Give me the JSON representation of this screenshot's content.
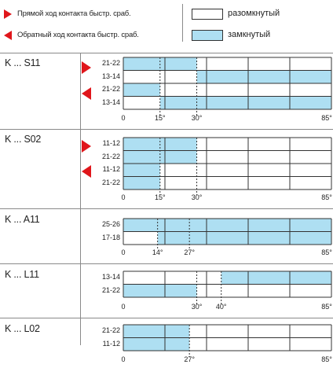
{
  "legend": {
    "direct_stroke": "Прямой ход контакта быстр. сраб.",
    "reverse_stroke": "Обратный ход контакта быстр. сраб.",
    "open": "разомкнутый",
    "closed": "замкнутый"
  },
  "colors": {
    "closed_fill": "#aedff2",
    "open_fill": "#ffffff",
    "arrow": "#e0161b",
    "grid": "#333333"
  },
  "icons": {
    "direct_stroke": "triangle-right-icon",
    "reverse_stroke": "triangle-left-icon"
  },
  "chart_data": [
    {
      "type": "timing",
      "model": "K ... S11",
      "ticks": [
        "0",
        "15°",
        "30°",
        "85°"
      ],
      "tick_values": [
        0,
        15,
        30,
        85
      ],
      "rows": [
        {
          "contact": "21-22",
          "stroke": "direct",
          "closed": [
            [
              0,
              30
            ]
          ]
        },
        {
          "contact": "13-14",
          "stroke": "direct",
          "closed": [
            [
              30,
              85
            ]
          ]
        },
        {
          "contact": "21-22",
          "stroke": "reverse",
          "closed": [
            [
              0,
              15
            ]
          ]
        },
        {
          "contact": "13-14",
          "stroke": "reverse",
          "closed": [
            [
              15,
              85
            ]
          ]
        }
      ]
    },
    {
      "type": "timing",
      "model": "K ... S02",
      "ticks": [
        "0",
        "15°",
        "30°",
        "85°"
      ],
      "tick_values": [
        0,
        15,
        30,
        85
      ],
      "rows": [
        {
          "contact": "11-12",
          "stroke": "direct",
          "closed": [
            [
              0,
              30
            ]
          ]
        },
        {
          "contact": "21-22",
          "stroke": "direct",
          "closed": [
            [
              0,
              30
            ]
          ]
        },
        {
          "contact": "11-12",
          "stroke": "reverse",
          "closed": [
            [
              0,
              15
            ]
          ]
        },
        {
          "contact": "21-22",
          "stroke": "reverse",
          "closed": [
            [
              0,
              15
            ]
          ]
        }
      ]
    },
    {
      "type": "timing",
      "model": "K ... A11",
      "ticks": [
        "0",
        "14°",
        "27°",
        "85°"
      ],
      "tick_values": [
        0,
        14,
        27,
        85
      ],
      "rows": [
        {
          "contact": "25-26",
          "stroke": "none",
          "closed": [
            [
              0,
              85
            ]
          ]
        },
        {
          "contact": "17-18",
          "stroke": "none",
          "closed": [
            [
              14,
              85
            ]
          ]
        }
      ]
    },
    {
      "type": "timing",
      "model": "K ... L11",
      "ticks": [
        "0",
        "30°",
        "40°",
        "85°"
      ],
      "tick_values": [
        0,
        30,
        40,
        85
      ],
      "rows": [
        {
          "contact": "13-14",
          "stroke": "none",
          "closed": [
            [
              40,
              85
            ]
          ]
        },
        {
          "contact": "21-22",
          "stroke": "none",
          "closed": [
            [
              0,
              30
            ]
          ]
        }
      ]
    },
    {
      "type": "timing",
      "model": "K ... L02",
      "ticks": [
        "0",
        "27°",
        "85°"
      ],
      "tick_values": [
        0,
        27,
        85
      ],
      "rows": [
        {
          "contact": "21-22",
          "stroke": "none",
          "closed": [
            [
              0,
              27
            ]
          ]
        },
        {
          "contact": "11-12",
          "stroke": "none",
          "closed": [
            [
              0,
              27
            ]
          ]
        }
      ]
    }
  ]
}
